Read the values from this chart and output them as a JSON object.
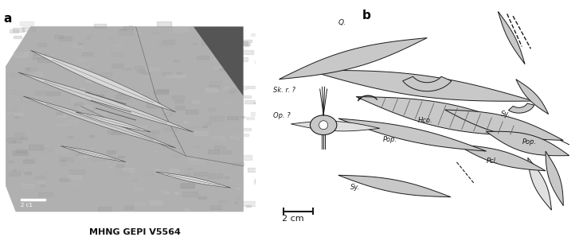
{
  "fig_width": 7.22,
  "fig_height": 2.98,
  "dpi": 100,
  "bg_color": "#ffffff",
  "label_a": "a",
  "label_b": "b",
  "caption": "MHNG GEPI V5564",
  "lc": "#1a1a1a",
  "fc": "#c8c8c8",
  "fc_light": "#e0e0e0",
  "fc_dark": "#aaaaaa"
}
